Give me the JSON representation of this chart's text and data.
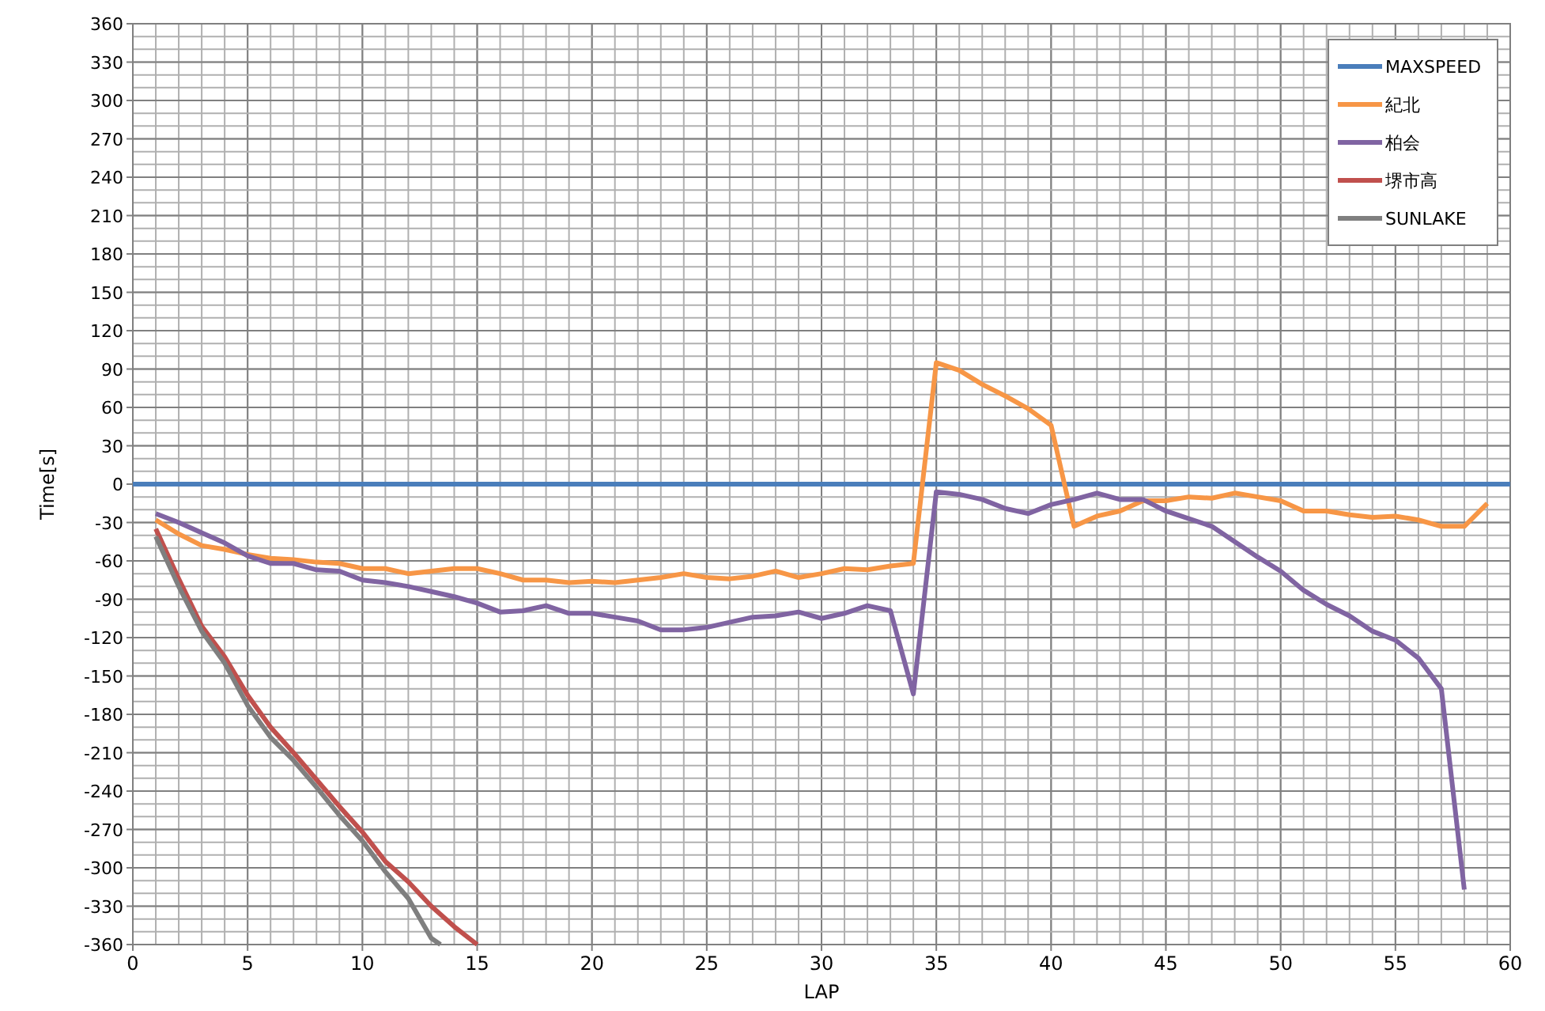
{
  "chart_data": {
    "type": "line",
    "xlabel": "LAP",
    "ylabel": "Time[s]",
    "xlim": [
      0,
      60
    ],
    "xticks": [
      0,
      5,
      10,
      15,
      20,
      25,
      30,
      35,
      40,
      45,
      50,
      55,
      60
    ],
    "ylim": [
      -360,
      360
    ],
    "yticks": [
      -360,
      -330,
      -300,
      -270,
      -240,
      -210,
      -180,
      -150,
      -120,
      -90,
      -60,
      -30,
      0,
      30,
      60,
      90,
      120,
      150,
      180,
      210,
      240,
      270,
      300,
      330,
      360
    ],
    "grid": true,
    "legend": "top right",
    "marker": "none",
    "line_style": "solid",
    "series": [
      {
        "name": "MAXSPEED",
        "color": "#4a7ebb",
        "x": [
          0,
          60
        ],
        "values": [
          0,
          0
        ]
      },
      {
        "name": "紀北",
        "color": "#f79646",
        "x": [
          1,
          2,
          3,
          4,
          5,
          6,
          7,
          8,
          9,
          10,
          11,
          12,
          13,
          14,
          15,
          16,
          17,
          18,
          19,
          20,
          21,
          22,
          23,
          24,
          25,
          26,
          27,
          28,
          29,
          30,
          31,
          32,
          33,
          34,
          35,
          36,
          37,
          38,
          39,
          40,
          41,
          42,
          43,
          44,
          45,
          46,
          47,
          48,
          49,
          50,
          51,
          52,
          53,
          54,
          55,
          56,
          57,
          58,
          59
        ],
        "values": [
          -28,
          -39,
          -48,
          -51,
          -55,
          -58,
          -59,
          -61,
          -62,
          -66,
          -66,
          -70,
          -68,
          -66,
          -66,
          -70,
          -75,
          -75,
          -77,
          -76,
          -77,
          -75,
          -73,
          -70,
          -73,
          -74,
          -72,
          -68,
          -73,
          -70,
          -66,
          -67,
          -64,
          -62,
          95,
          89,
          78,
          69,
          59,
          46,
          -33,
          -25,
          -21,
          -13,
          -13,
          -10,
          -11,
          -7,
          -10,
          -13,
          -21,
          -21,
          -24,
          -26,
          -25,
          -28,
          -33,
          -33,
          -15
        ]
      },
      {
        "name": "柏会",
        "color": "#8064a2",
        "x": [
          1,
          2,
          3,
          4,
          5,
          6,
          7,
          8,
          9,
          10,
          11,
          12,
          13,
          14,
          15,
          16,
          17,
          18,
          19,
          20,
          21,
          22,
          23,
          24,
          25,
          26,
          27,
          28,
          29,
          30,
          31,
          32,
          33,
          34,
          35,
          36,
          37,
          38,
          39,
          40,
          41,
          42,
          43,
          44,
          45,
          46,
          47,
          48,
          49,
          50,
          51,
          52,
          53,
          54,
          55,
          56,
          57,
          58
        ],
        "values": [
          -23,
          -30,
          -38,
          -46,
          -56,
          -62,
          -62,
          -67,
          -68,
          -75,
          -77,
          -80,
          -84,
          -88,
          -93,
          -100,
          -99,
          -95,
          -101,
          -101,
          -104,
          -107,
          -114,
          -114,
          -112,
          -108,
          -104,
          -103,
          -100,
          -105,
          -101,
          -95,
          -99,
          -164,
          -6,
          -8,
          -12,
          -19,
          -23,
          -16,
          -12,
          -7,
          -12,
          -12,
          -21,
          -27,
          -33,
          -45,
          -57,
          -68,
          -83,
          -94,
          -103,
          -115,
          -122,
          -136,
          -160,
          -317
        ]
      },
      {
        "name": "堺市高",
        "color": "#c0504d",
        "x": [
          1,
          2,
          3,
          4,
          5,
          6,
          7,
          8,
          9,
          10,
          11,
          12,
          13,
          14,
          15
        ],
        "values": [
          -35,
          -74,
          -111,
          -135,
          -165,
          -190,
          -210,
          -231,
          -252,
          -272,
          -295,
          -311,
          -330,
          -346,
          -360
        ]
      },
      {
        "name": "SUNLAKE",
        "color": "#7f7f7f",
        "x": [
          1,
          2,
          3,
          4,
          5,
          6,
          7,
          8,
          9,
          10,
          11,
          12,
          13,
          13.4
        ],
        "values": [
          -41,
          -80,
          -115,
          -140,
          -173,
          -198,
          -216,
          -237,
          -259,
          -279,
          -303,
          -324,
          -355,
          -360
        ]
      }
    ]
  }
}
